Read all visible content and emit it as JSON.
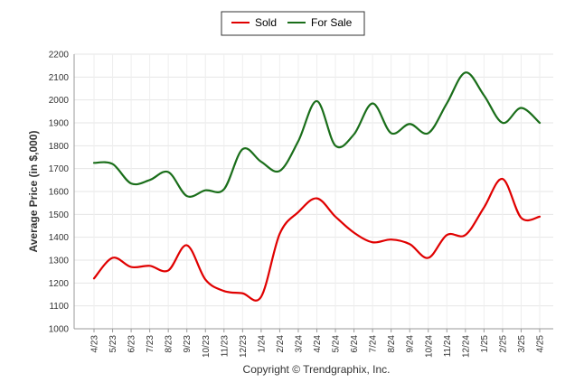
{
  "chart_data": {
    "type": "line",
    "ylabel": "Average Price (in $,000)",
    "ylim": [
      1000,
      2200
    ],
    "y_ticks": [
      1000,
      1100,
      1200,
      1300,
      1400,
      1500,
      1600,
      1700,
      1800,
      1900,
      2000,
      2100,
      2200
    ],
    "categories": [
      "4/23",
      "5/23",
      "6/23",
      "7/23",
      "8/23",
      "9/23",
      "10/23",
      "11/23",
      "12/23",
      "1/24",
      "2/24",
      "3/24",
      "4/24",
      "5/24",
      "6/24",
      "7/24",
      "8/24",
      "9/24",
      "10/24",
      "11/24",
      "12/24",
      "1/25",
      "2/25",
      "3/25",
      "4/25"
    ],
    "grid": true,
    "legend_position": "top-center",
    "series": [
      {
        "name": "Sold",
        "color": "#e00000",
        "values": [
          1220,
          1310,
          1270,
          1275,
          1255,
          1365,
          1215,
          1165,
          1155,
          1140,
          1415,
          1510,
          1570,
          1490,
          1420,
          1378,
          1390,
          1370,
          1310,
          1410,
          1410,
          1530,
          1655,
          1485,
          1490
        ]
      },
      {
        "name": "For Sale",
        "color": "#1a6e1a",
        "values": [
          1725,
          1720,
          1635,
          1650,
          1685,
          1580,
          1605,
          1610,
          1785,
          1730,
          1690,
          1820,
          1995,
          1800,
          1850,
          1985,
          1855,
          1895,
          1855,
          1985,
          2120,
          2020,
          1900,
          1965,
          1900
        ]
      }
    ]
  },
  "footer": "Copyright © Trendgraphix, Inc."
}
